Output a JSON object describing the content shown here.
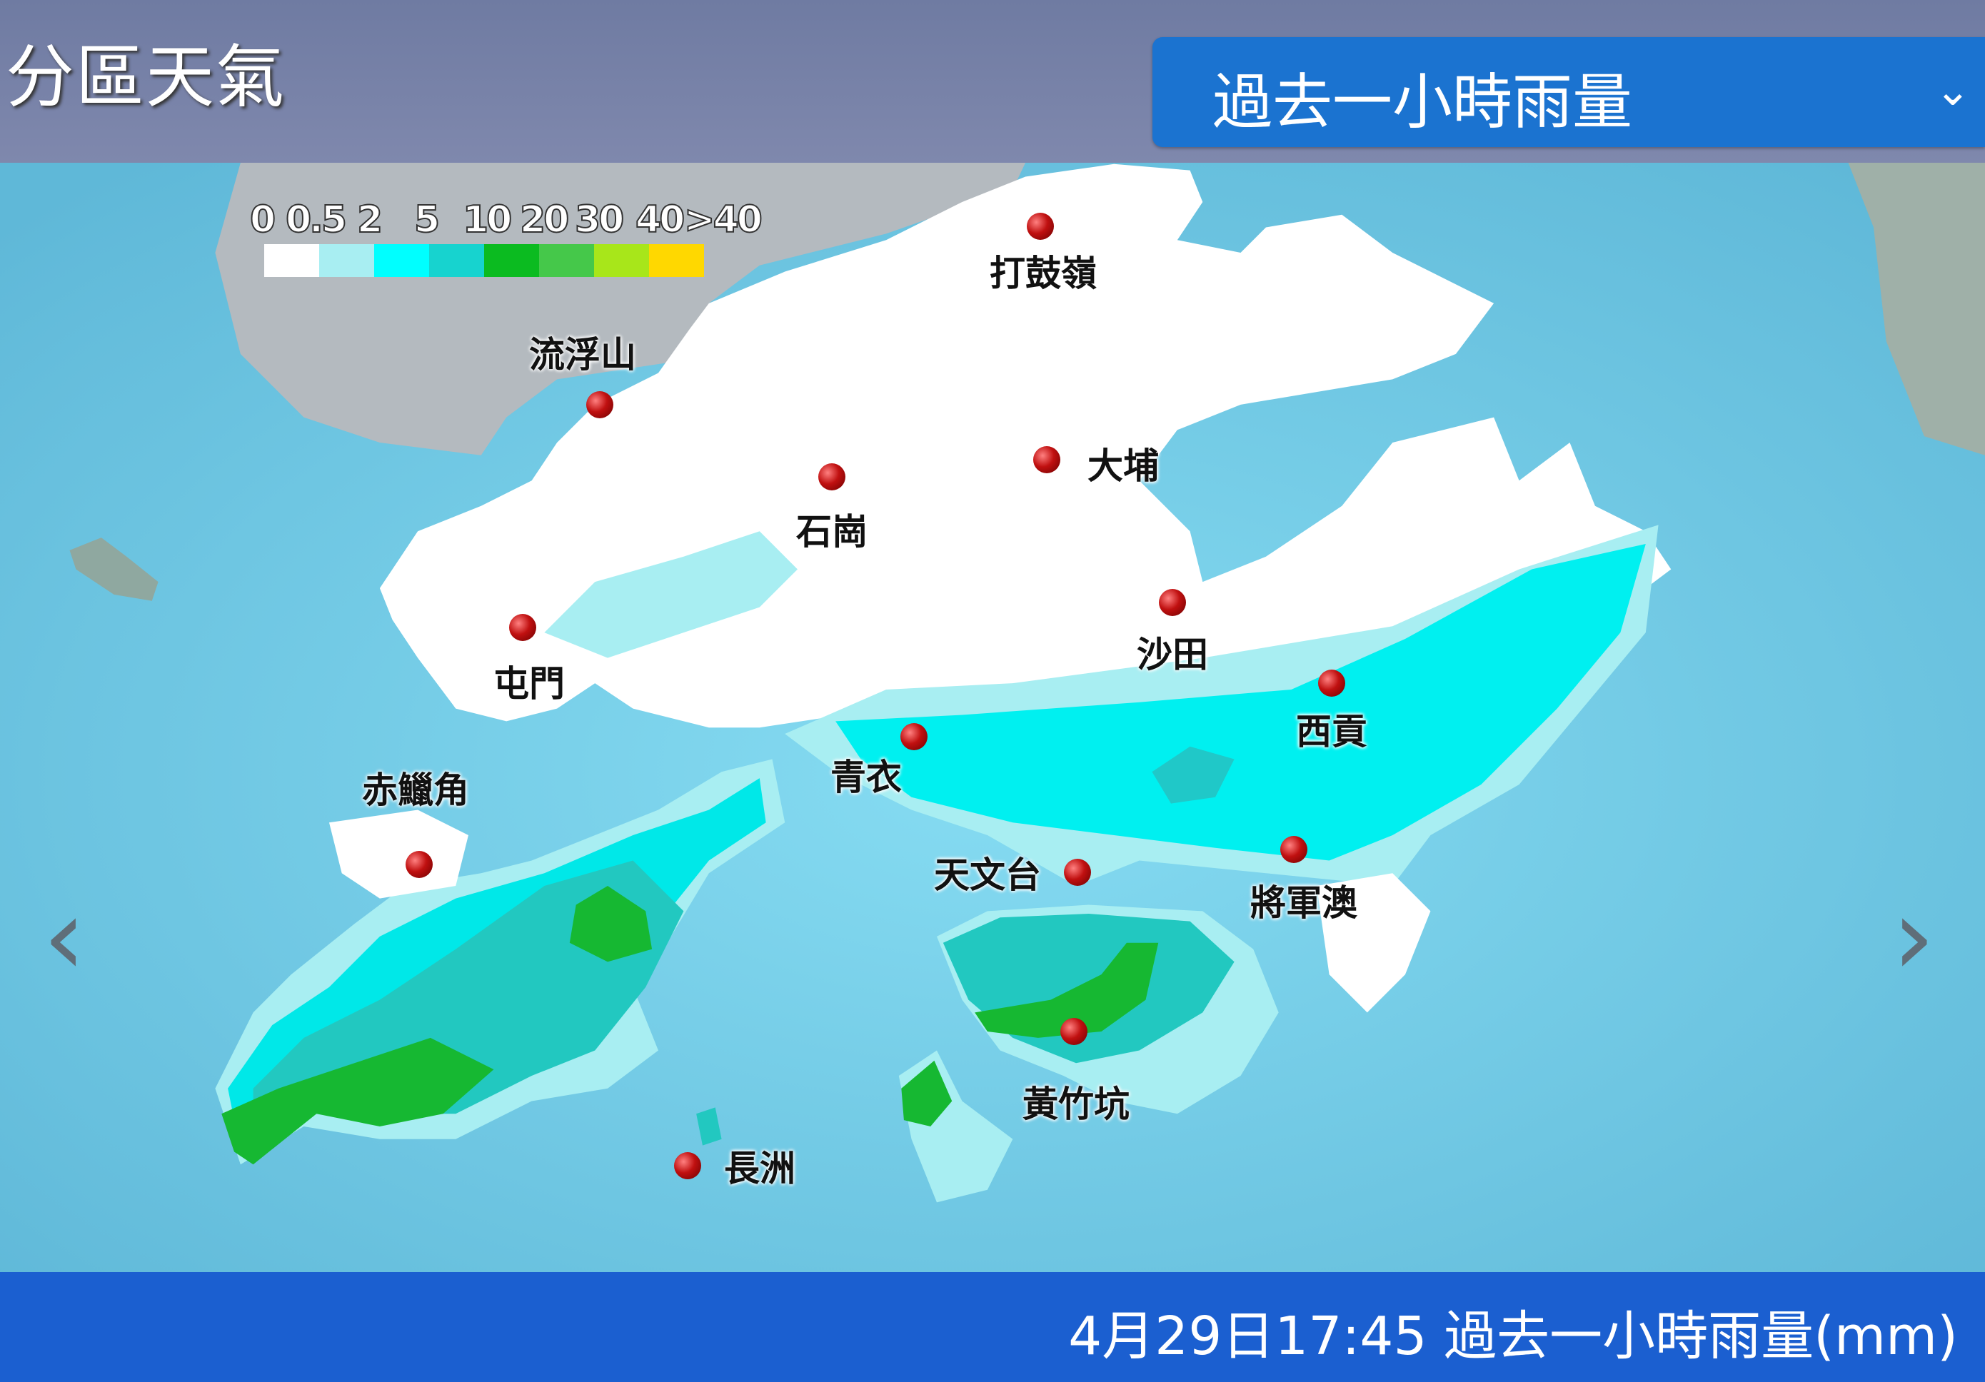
{
  "header": {
    "title": "分區天氣",
    "dropdown": {
      "selected": "過去一小時雨量",
      "icon": "chevron-down-icon"
    }
  },
  "legend": {
    "labels": [
      "0",
      "0.5",
      "2",
      "5",
      "10",
      "20",
      "30",
      "40",
      ">40"
    ],
    "colors": [
      "#ffffff",
      "#a8eef2",
      "#00ffff",
      "#17d3cf",
      "#0bbb20",
      "#45c84a",
      "#a8e61a",
      "#ffd800"
    ]
  },
  "stations": [
    {
      "name": "打鼓嶺"
    },
    {
      "name": "流浮山"
    },
    {
      "name": "石崗"
    },
    {
      "name": "大埔"
    },
    {
      "name": "沙田"
    },
    {
      "name": "屯門"
    },
    {
      "name": "西貢"
    },
    {
      "name": "青衣"
    },
    {
      "name": "赤鱲角"
    },
    {
      "name": "天文台"
    },
    {
      "name": "將軍澳"
    },
    {
      "name": "黃竹坑"
    },
    {
      "name": "長洲"
    }
  ],
  "navigation": {
    "prev_icon": "chevron-left-icon",
    "next_icon": "chevron-right-icon",
    "prev": "‹",
    "next": "›"
  },
  "footer": {
    "caption": "4月29日17:45 過去一小時雨量(mm)"
  }
}
